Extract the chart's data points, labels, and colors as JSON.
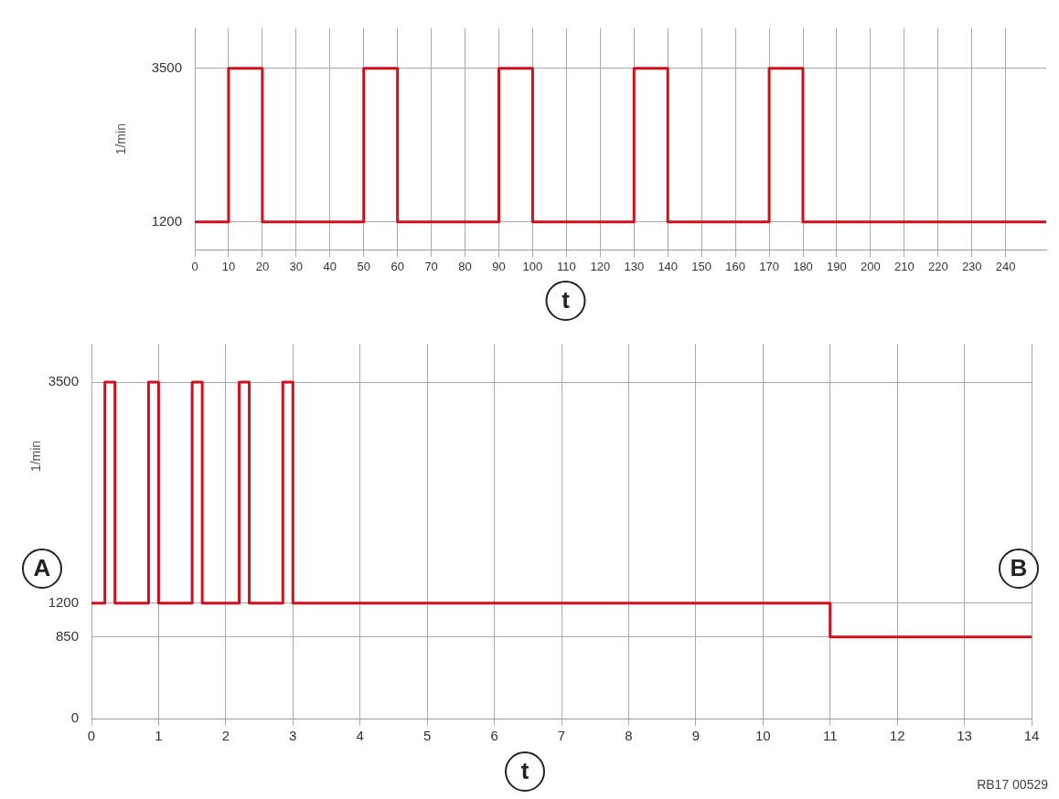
{
  "chart_data": [
    {
      "type": "step",
      "xlabel": "t",
      "ylabel": "1/min",
      "color": "#d0101c",
      "x": [
        0,
        10,
        20,
        50,
        60,
        90,
        100,
        130,
        140,
        170,
        180,
        252
      ],
      "values": [
        1200,
        3500,
        1200,
        3500,
        1200,
        3500,
        1200,
        3500,
        1200,
        3500,
        1200,
        1200
      ],
      "xlim": [
        0,
        252
      ],
      "xticks": [
        0,
        10,
        20,
        30,
        40,
        50,
        60,
        70,
        80,
        90,
        100,
        110,
        120,
        130,
        140,
        150,
        160,
        170,
        180,
        190,
        200,
        210,
        220,
        230,
        240
      ],
      "ylim": [
        780,
        4100
      ],
      "yticks": [
        1200,
        3500
      ],
      "grid": true
    },
    {
      "type": "step",
      "xlabel": "t",
      "ylabel": "1/min",
      "color": "#d0101c",
      "x": [
        0,
        0.2,
        0.35,
        0.85,
        1.0,
        1.5,
        1.65,
        2.2,
        2.35,
        2.85,
        3.0,
        11,
        14
      ],
      "values": [
        1200,
        3500,
        1200,
        3500,
        1200,
        3500,
        1200,
        3500,
        1200,
        3500,
        1200,
        850,
        850
      ],
      "xlim": [
        0,
        14
      ],
      "xticks": [
        0,
        1,
        2,
        3,
        4,
        5,
        6,
        7,
        8,
        9,
        10,
        11,
        12,
        13,
        14
      ],
      "ylim": [
        0,
        3900
      ],
      "yticks": [
        0,
        850,
        1200,
        3500
      ],
      "grid": true,
      "annotations": [
        "A",
        "B",
        "RB17 00529"
      ]
    }
  ]
}
